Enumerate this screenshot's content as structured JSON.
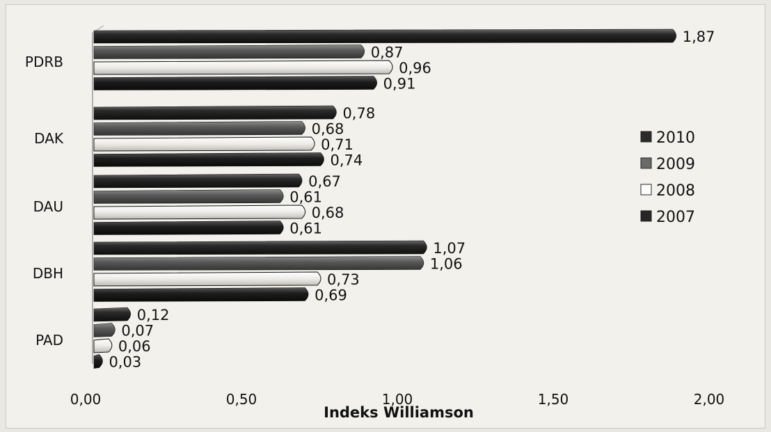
{
  "chart_data": {
    "type": "bar",
    "orientation": "horizontal",
    "categories": [
      "PAD",
      "DBH",
      "DAU",
      "DAK",
      "PDRB"
    ],
    "series": [
      {
        "name": "2010",
        "values": [
          0.12,
          1.07,
          0.67,
          0.78,
          1.87
        ]
      },
      {
        "name": "2009",
        "values": [
          0.07,
          1.06,
          0.61,
          0.68,
          0.87
        ]
      },
      {
        "name": "2008",
        "values": [
          0.06,
          0.73,
          0.68,
          0.71,
          0.96
        ]
      },
      {
        "name": "2007",
        "values": [
          0.03,
          0.69,
          0.61,
          0.74,
          0.91
        ]
      }
    ],
    "value_labels": {
      "PAD": [
        "0,12",
        "0,07",
        "0,06",
        "0,03"
      ],
      "DBH": [
        "1,07",
        "1,06",
        "0,73",
        "0,69"
      ],
      "DAU": [
        "0,67",
        "0,61",
        "0,68",
        "0,61"
      ],
      "DAK": [
        "0,78",
        "0,68",
        "0,71",
        "0,74"
      ],
      "PDRB": [
        "1,87",
        "0,87",
        "0,96",
        "0,91"
      ]
    },
    "xticks": [
      "0,00",
      "0,50",
      "1,00",
      "1,50",
      "2,00"
    ],
    "xlim": [
      0,
      2
    ],
    "title": "",
    "xlabel": "Indeks Williamson",
    "ylabel": "",
    "grid": false,
    "legend_position": "right",
    "colors": {
      "2010": "#2b2b2b",
      "2009": "#5e5e5e",
      "2008": "#efefec",
      "2007": "#262626"
    }
  }
}
